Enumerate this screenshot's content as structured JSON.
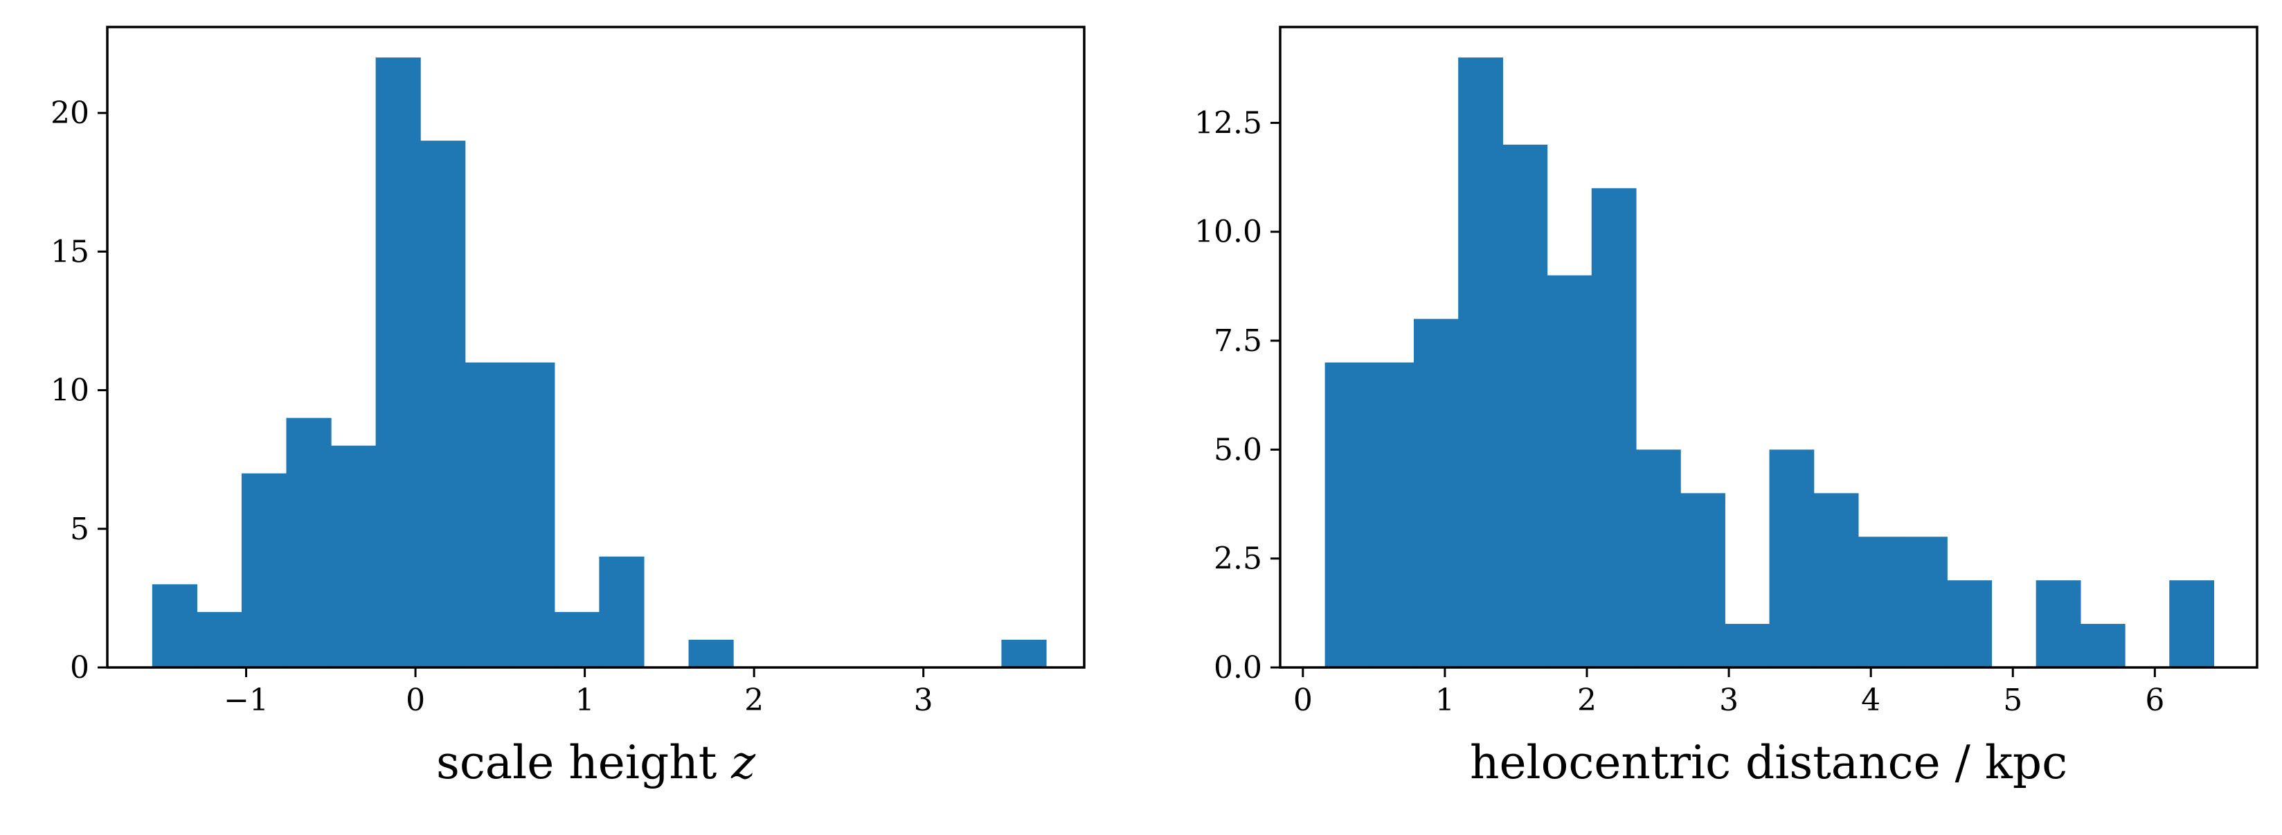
{
  "chart_data": [
    {
      "type": "bar",
      "subtype": "histogram",
      "color": "#1f77b4",
      "xlabel": "scale height",
      "xlabel_variable": "z",
      "ylabel": "",
      "xlim": [
        -1.82,
        3.95
      ],
      "ylim": [
        0,
        23.1
      ],
      "xticks": [
        -1,
        0,
        1,
        2,
        3
      ],
      "xtick_labels": [
        "−1",
        "0",
        "1",
        "2",
        "3"
      ],
      "yticks": [
        0,
        5,
        10,
        15,
        20
      ],
      "ytick_labels": [
        "0",
        "5",
        "10",
        "15",
        "20"
      ],
      "bin_edges": [
        -1.555,
        -1.291,
        -1.027,
        -0.763,
        -0.499,
        -0.235,
        0.029,
        0.293,
        0.557,
        0.821,
        1.085,
        1.349,
        1.613,
        1.877,
        2.141,
        2.405,
        2.669,
        2.933,
        3.197,
        3.461,
        3.725
      ],
      "counts": [
        3,
        2,
        7,
        9,
        8,
        22,
        19,
        11,
        11,
        2,
        4,
        0,
        1,
        0,
        0,
        0,
        0,
        0,
        0,
        1
      ]
    },
    {
      "type": "bar",
      "subtype": "histogram",
      "color": "#1f77b4",
      "xlabel": "helocentric distance / kpc",
      "ylabel": "",
      "xlim": [
        -0.16,
        6.72
      ],
      "ylim": [
        0,
        14.7
      ],
      "xticks": [
        0,
        1,
        2,
        3,
        4,
        5,
        6
      ],
      "xtick_labels": [
        "0",
        "1",
        "2",
        "3",
        "4",
        "5",
        "6"
      ],
      "yticks": [
        0,
        2.5,
        5,
        7.5,
        10,
        12.5
      ],
      "ytick_labels": [
        "0.0",
        "2.5",
        "5.0",
        "7.5",
        "10.0",
        "12.5"
      ],
      "bin_edges": [
        0.155,
        0.468,
        0.781,
        1.094,
        1.407,
        1.72,
        2.033,
        2.346,
        2.659,
        2.972,
        3.285,
        3.598,
        3.911,
        4.224,
        4.537,
        4.85,
        5.163,
        5.476,
        5.789,
        6.102,
        6.415
      ],
      "counts": [
        7,
        7,
        8,
        14,
        12,
        9,
        11,
        5,
        4,
        1,
        5,
        4,
        3,
        3,
        2,
        0,
        2,
        1,
        0,
        2
      ]
    }
  ]
}
